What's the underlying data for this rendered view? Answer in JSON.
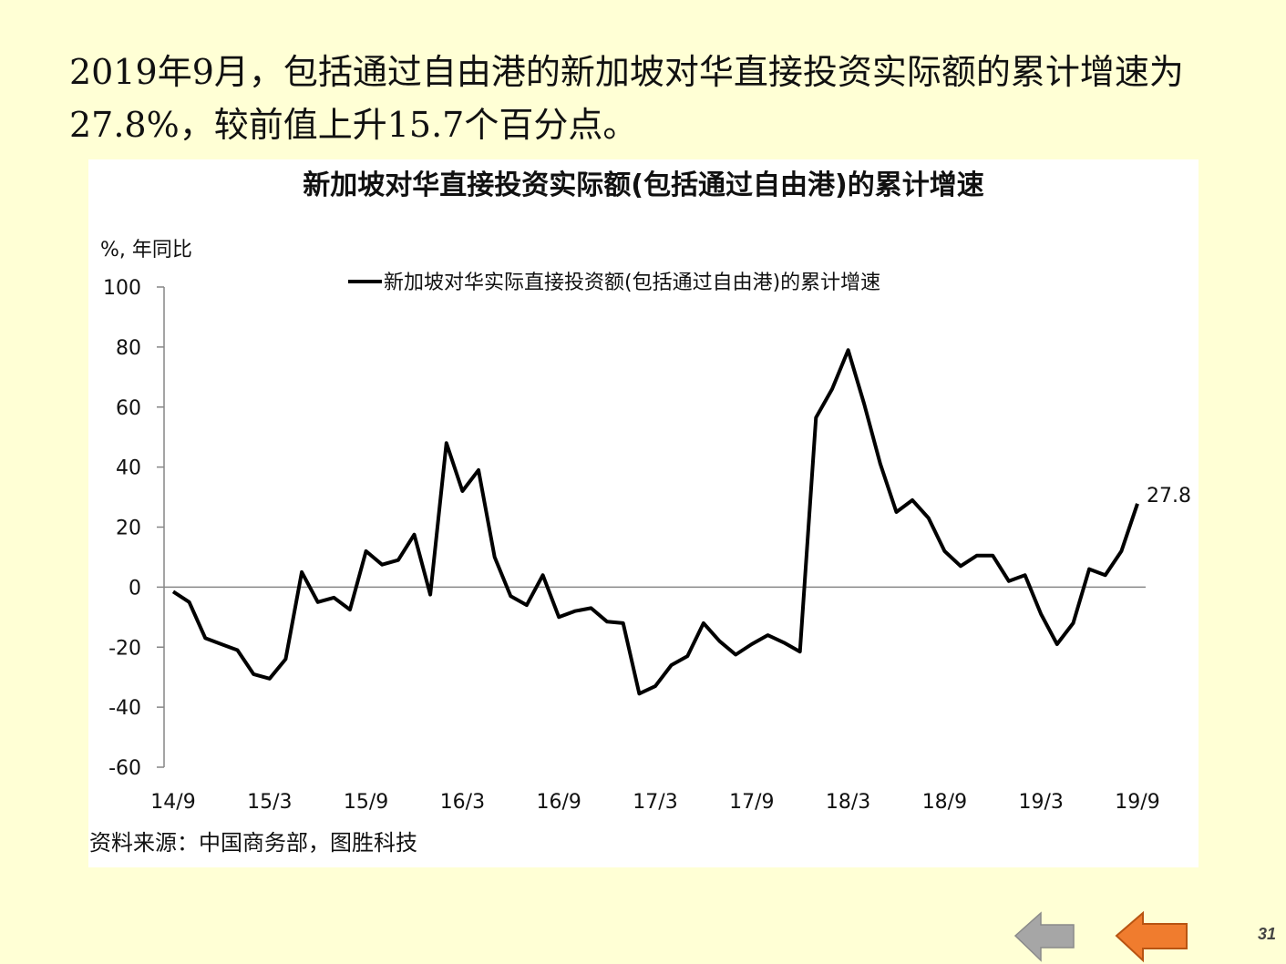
{
  "headline": {
    "line1": "2019年9月，包括通过自由港的新加坡对华直接投资实际额的累计增速为",
    "line2": "27.8%，较前值上升15.7个百分点。"
  },
  "source": "资料来源：中国商务部，图胜科技",
  "page_number": "31",
  "nav": {
    "prev_icon": "left-arrow-gray",
    "next_icon": "left-arrow-orange"
  },
  "colors": {
    "background": "#FFFFD5",
    "line": "#000000",
    "prev_arrow_fill": "#A6A6A6",
    "next_arrow_fill": "#F07C2E",
    "next_arrow_stroke": "#B85412"
  },
  "chart_data": {
    "type": "line",
    "title": "新加坡对华直接投资实际额(包括通过自由港)的累计增速",
    "ylabel": "%, 年同比",
    "xlabel": "",
    "ylim": [
      -60,
      100
    ],
    "yticks": [
      100,
      80,
      60,
      40,
      20,
      0,
      -20,
      -40,
      -60
    ],
    "x_tick_labels": [
      "14/9",
      "15/3",
      "15/9",
      "16/3",
      "16/9",
      "17/3",
      "17/9",
      "18/3",
      "18/9",
      "19/3",
      "19/9"
    ],
    "x_start": "14/9",
    "x_end": "19/9",
    "grid": false,
    "legend": "top-center",
    "series": [
      {
        "name": "新加坡对华实际直接投资额(包括通过自由港)的累计增速",
        "values": [
          -1.5,
          -5,
          -17,
          -19,
          -21,
          -29,
          -30.5,
          -24,
          5,
          -5,
          -3.5,
          -7.5,
          12,
          7.5,
          9,
          17.5,
          -2.5,
          48,
          32,
          39,
          10,
          -3,
          -6,
          4,
          -10,
          -8,
          -7,
          -11.5,
          -12,
          -35.5,
          -33,
          -26,
          -23,
          -12,
          -18,
          -22.5,
          -19,
          -16,
          -18.5,
          -21.5,
          56.5,
          66,
          79,
          61,
          41,
          25,
          29,
          23,
          12,
          7,
          10.5,
          10.5,
          2,
          4,
          -9,
          -19,
          -12,
          6,
          4,
          12,
          27.8
        ]
      }
    ],
    "last_value_label": "27.8"
  }
}
